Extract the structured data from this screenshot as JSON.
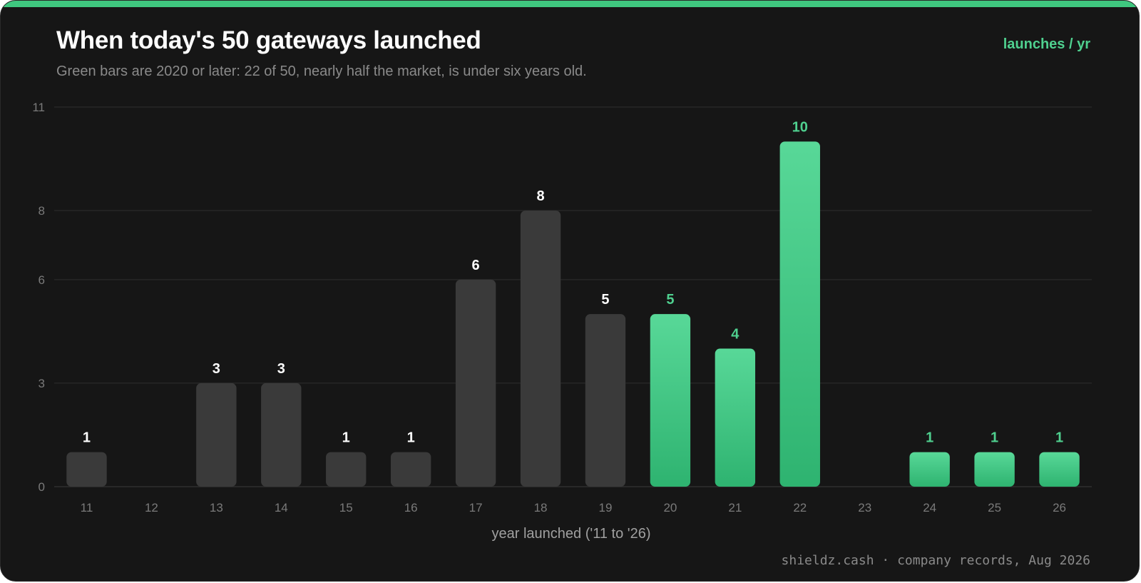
{
  "header": {
    "title": "When today's 50 gateways launched",
    "subtitle": "Green bars are 2020 or later: 22 of 50, nearly half the market, is under six years old.",
    "unit_label": "launches / yr"
  },
  "footer": {
    "source": "shieldz.cash · company records, Aug 2026"
  },
  "colors": {
    "accent": "#3fc77f",
    "bar_old": "#3a3a3a",
    "bar_new_top": "#58d898",
    "bar_new_bottom": "#2eb370",
    "label_new": "#4fd08f",
    "label_old": "#ffffff"
  },
  "chart_data": {
    "type": "bar",
    "title": "When today's 50 gateways launched",
    "subtitle": "Green bars are 2020 or later: 22 of 50, nearly half the market, is under six years old.",
    "xlabel": "year launched ('11 to '26)",
    "ylabel": "launches / yr",
    "categories": [
      "11",
      "12",
      "13",
      "14",
      "15",
      "16",
      "17",
      "18",
      "19",
      "20",
      "21",
      "22",
      "23",
      "24",
      "25",
      "26"
    ],
    "values": [
      1,
      0,
      3,
      3,
      1,
      1,
      6,
      8,
      5,
      5,
      4,
      10,
      0,
      1,
      1,
      1
    ],
    "highlight_from": "20",
    "y_ticks": [
      0,
      3,
      6,
      8,
      11
    ],
    "ylim": [
      0,
      11
    ],
    "grid": true
  }
}
